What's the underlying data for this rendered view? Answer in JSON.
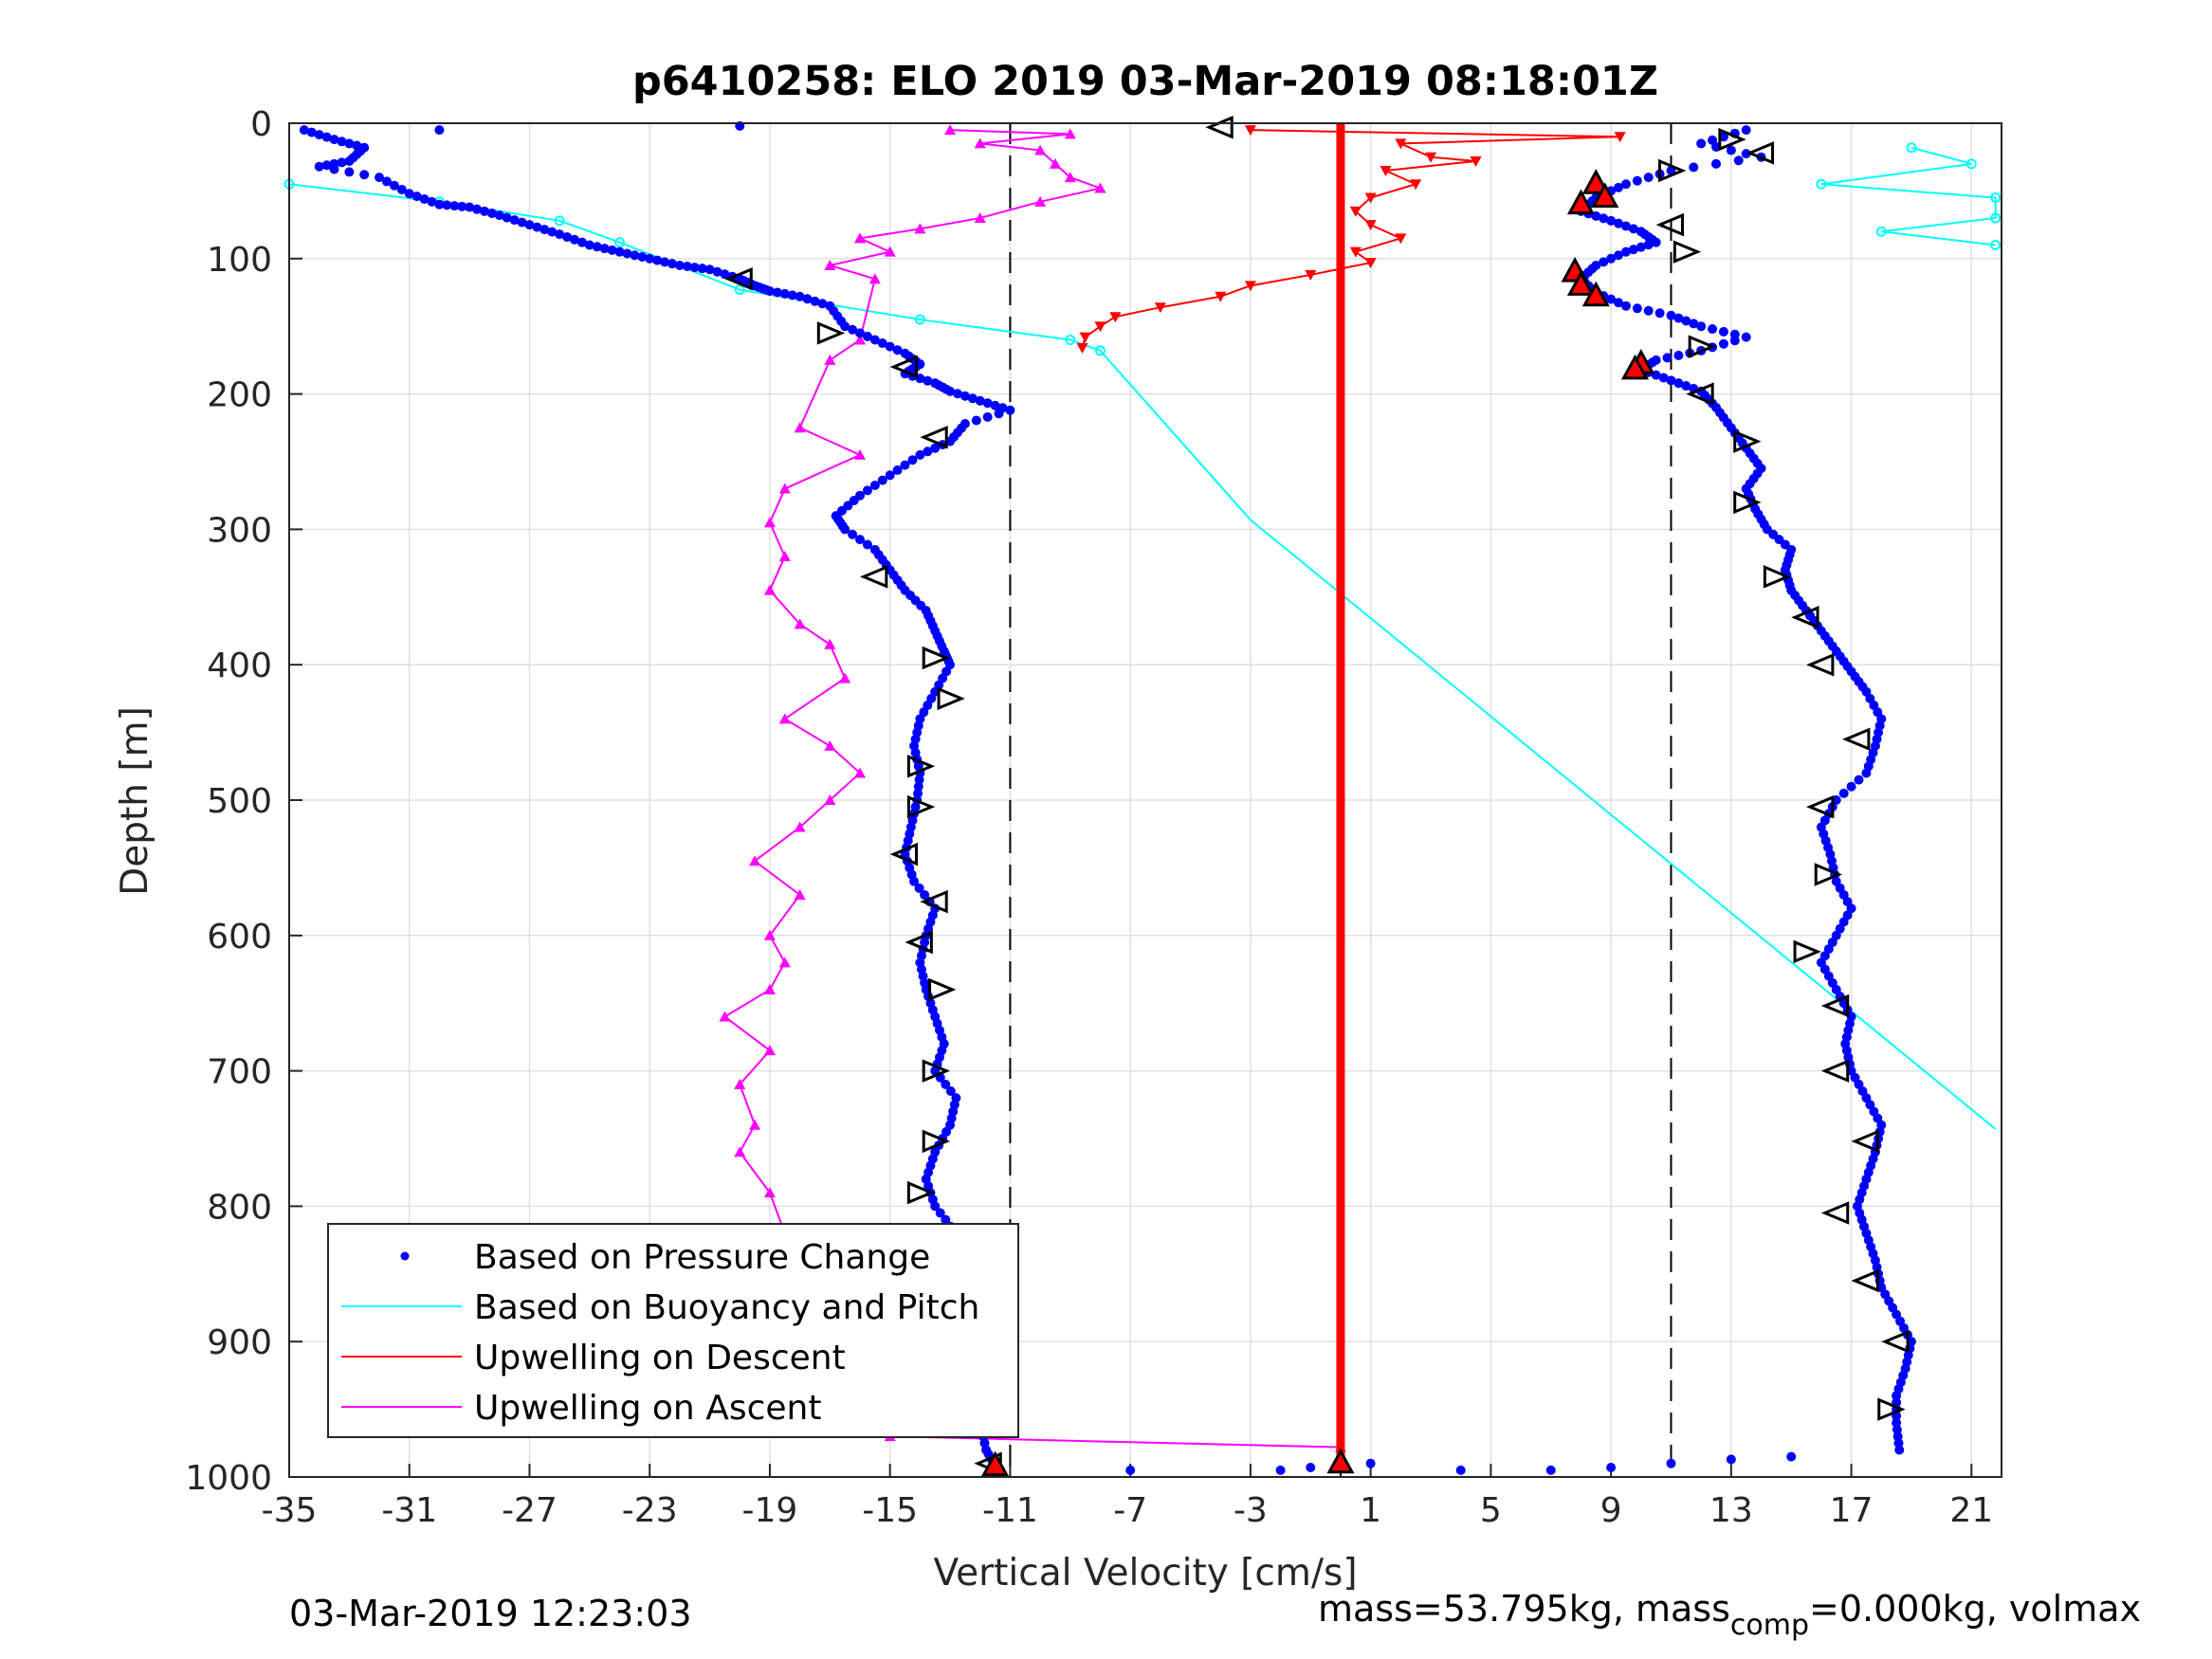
{
  "chart_data": {
    "type": "scatter",
    "title": "p6410258: ELO 2019 03-Mar-2019 08:18:01Z",
    "xlabel": "Vertical Velocity [cm/s]",
    "ylabel": "Depth [m]",
    "xlim": [
      -35,
      22
    ],
    "ylim": [
      0,
      1000
    ],
    "y_reversed": true,
    "grid": true,
    "x_ticks": [
      "-35",
      "-31",
      "-27",
      "-23",
      "-19",
      "-15",
      "-11",
      "-7",
      "-3",
      "1",
      "5",
      "9",
      "13",
      "17",
      "21"
    ],
    "y_ticks": [
      "0",
      "100",
      "200",
      "300",
      "400",
      "500",
      "600",
      "700",
      "800",
      "900",
      "1000"
    ],
    "dashed_reference_lines_x": [
      -11,
      11
    ],
    "solid_reference_line_x": 0,
    "legend_location": "bottom-left",
    "footer_left": "03-Mar-2019 12:23:03",
    "footer_right_prefix": "mass=53.795kg, mass",
    "footer_right_sub": "comp",
    "footer_right_suffix": "=0.000kg, volmax",
    "series": [
      {
        "name": "Based on Pressure Change",
        "color": "#0000ff",
        "marker": "dot",
        "descent": [
          [
            -34.5,
            5
          ],
          [
            -33.5,
            12
          ],
          [
            -32.5,
            18
          ],
          [
            -33,
            28
          ],
          [
            -34,
            32
          ],
          [
            -32,
            40
          ],
          [
            -31,
            52
          ],
          [
            -30,
            60
          ],
          [
            -29,
            62
          ],
          [
            -28,
            68
          ],
          [
            -27,
            75
          ],
          [
            -26,
            82
          ],
          [
            -25,
            90
          ],
          [
            -24,
            95
          ],
          [
            -23,
            100
          ],
          [
            -22,
            105
          ],
          [
            -21,
            108
          ],
          [
            -20,
            115
          ],
          [
            -19.5,
            120
          ],
          [
            -19,
            124
          ],
          [
            -18,
            128
          ],
          [
            -17,
            135
          ],
          [
            -16.5,
            150
          ],
          [
            -15.5,
            160
          ],
          [
            -14.5,
            170
          ],
          [
            -14,
            178
          ],
          [
            -14.5,
            185
          ],
          [
            -13.5,
            192
          ],
          [
            -13,
            198
          ],
          [
            -12,
            205
          ],
          [
            -11,
            212
          ],
          [
            -12.5,
            222
          ],
          [
            -13,
            235
          ],
          [
            -14,
            245
          ],
          [
            -15,
            260
          ],
          [
            -16,
            275
          ],
          [
            -16.8,
            290
          ],
          [
            -16.5,
            300
          ],
          [
            -15.5,
            315
          ],
          [
            -15,
            330
          ],
          [
            -14.5,
            345
          ],
          [
            -13.8,
            360
          ],
          [
            -13.5,
            375
          ],
          [
            -13.2,
            390
          ],
          [
            -13,
            400
          ],
          [
            -13.5,
            420
          ],
          [
            -14,
            440
          ],
          [
            -14.2,
            460
          ],
          [
            -14,
            480
          ],
          [
            -14.1,
            500
          ],
          [
            -14.3,
            520
          ],
          [
            -14.5,
            540
          ],
          [
            -14.2,
            560
          ],
          [
            -13.5,
            580
          ],
          [
            -13.8,
            600
          ],
          [
            -14,
            620
          ],
          [
            -13.8,
            640
          ],
          [
            -13.5,
            660
          ],
          [
            -13.2,
            680
          ],
          [
            -13.5,
            700
          ],
          [
            -12.8,
            720
          ],
          [
            -13,
            740
          ],
          [
            -13.5,
            760
          ],
          [
            -13.8,
            780
          ],
          [
            -13.5,
            800
          ],
          [
            -12.8,
            820
          ],
          [
            -12.5,
            840
          ],
          [
            -12.5,
            860
          ],
          [
            -12.8,
            880
          ],
          [
            -12.5,
            900
          ],
          [
            -12.2,
            920
          ],
          [
            -12.5,
            940
          ],
          [
            -12,
            960
          ],
          [
            -11.8,
            980
          ],
          [
            -11.5,
            992
          ]
        ],
        "ascent": [
          [
            13.5,
            5
          ],
          [
            12,
            15
          ],
          [
            14,
            25
          ],
          [
            11,
            35
          ],
          [
            9.5,
            45
          ],
          [
            8.5,
            55
          ],
          [
            8,
            65
          ],
          [
            9,
            72
          ],
          [
            10,
            80
          ],
          [
            10.5,
            88
          ],
          [
            9.5,
            95
          ],
          [
            8.5,
            105
          ],
          [
            8,
            115
          ],
          [
            8.5,
            125
          ],
          [
            9.5,
            135
          ],
          [
            11,
            142
          ],
          [
            12,
            150
          ],
          [
            13.5,
            158
          ],
          [
            12,
            168
          ],
          [
            10.5,
            175
          ],
          [
            10,
            182
          ],
          [
            11,
            190
          ],
          [
            12,
            198
          ],
          [
            12.5,
            210
          ],
          [
            13,
            225
          ],
          [
            13.5,
            240
          ],
          [
            14,
            255
          ],
          [
            13.5,
            270
          ],
          [
            13.8,
            285
          ],
          [
            14.2,
            300
          ],
          [
            15,
            315
          ],
          [
            14.8,
            330
          ],
          [
            15,
            345
          ],
          [
            15.5,
            360
          ],
          [
            16,
            375
          ],
          [
            16.5,
            390
          ],
          [
            17,
            405
          ],
          [
            17.5,
            420
          ],
          [
            18,
            440
          ],
          [
            17.8,
            460
          ],
          [
            17.5,
            480
          ],
          [
            16.5,
            500
          ],
          [
            16,
            520
          ],
          [
            16.3,
            540
          ],
          [
            16.5,
            560
          ],
          [
            17,
            580
          ],
          [
            16.5,
            600
          ],
          [
            16,
            620
          ],
          [
            16.5,
            640
          ],
          [
            17,
            660
          ],
          [
            16.8,
            680
          ],
          [
            17,
            700
          ],
          [
            17.5,
            720
          ],
          [
            18,
            740
          ],
          [
            17.8,
            760
          ],
          [
            17.5,
            780
          ],
          [
            17.2,
            800
          ],
          [
            17.5,
            820
          ],
          [
            17.8,
            840
          ],
          [
            18,
            860
          ],
          [
            18.5,
            880
          ],
          [
            19,
            900
          ],
          [
            18.8,
            920
          ],
          [
            18.5,
            940
          ],
          [
            18.5,
            960
          ],
          [
            18.6,
            980
          ]
        ],
        "surface": [
          [
            -30,
            5
          ],
          [
            -20,
            2
          ],
          [
            -7,
            995
          ],
          [
            -2,
            995
          ],
          [
            -1,
            993
          ],
          [
            1,
            990
          ],
          [
            4,
            995
          ],
          [
            7,
            995
          ],
          [
            9,
            993
          ],
          [
            11,
            990
          ],
          [
            13,
            987
          ],
          [
            15,
            985
          ]
        ]
      },
      {
        "name": "Based on Buoyancy and Pitch",
        "color": "#00ffff",
        "line": [
          [
            -35,
            45
          ],
          [
            -30,
            58
          ],
          [
            -26,
            72
          ],
          [
            -24,
            88
          ],
          [
            -20,
            123
          ],
          [
            -14,
            145
          ],
          [
            -9,
            160
          ],
          [
            -8,
            168
          ],
          [
            -3,
            293
          ],
          [
            21.8,
            743
          ]
        ],
        "upper_right": [
          [
            19,
            18
          ],
          [
            21,
            30
          ],
          [
            16,
            45
          ],
          [
            21.8,
            55
          ],
          [
            21.8,
            70
          ],
          [
            18,
            80
          ],
          [
            21.8,
            90
          ]
        ]
      },
      {
        "name": "Upwelling on Descent",
        "color": "#ff0000",
        "marker": "triangle-down",
        "points": [
          [
            -3,
            5
          ],
          [
            9.3,
            10
          ],
          [
            2,
            15
          ],
          [
            3,
            25
          ],
          [
            4.5,
            28
          ],
          [
            1.5,
            35
          ],
          [
            2.5,
            45
          ],
          [
            1,
            55
          ],
          [
            0.5,
            65
          ],
          [
            1,
            75
          ],
          [
            2,
            85
          ],
          [
            0.5,
            95
          ],
          [
            1,
            103
          ],
          [
            -1,
            112
          ],
          [
            -3,
            120
          ],
          [
            -4,
            128
          ],
          [
            -6,
            136
          ],
          [
            -7.5,
            143
          ],
          [
            -8,
            150
          ],
          [
            -8.5,
            158
          ],
          [
            -8.6,
            166
          ]
        ],
        "vertical_x": 0,
        "vertical_range": [
          0,
          992
        ]
      },
      {
        "name": "Upwelling on Ascent",
        "color": "#ff00ff",
        "marker": "triangle-up",
        "points": [
          [
            -13,
            5
          ],
          [
            -9,
            8
          ],
          [
            -12,
            15
          ],
          [
            -10,
            20
          ],
          [
            -9.5,
            30
          ],
          [
            -9,
            40
          ],
          [
            -8,
            48
          ],
          [
            -10,
            58
          ],
          [
            -12,
            70
          ],
          [
            -14,
            78
          ],
          [
            -16,
            85
          ],
          [
            -15,
            95
          ],
          [
            -17,
            105
          ],
          [
            -15.5,
            115
          ],
          [
            -16,
            160
          ],
          [
            -17,
            175
          ],
          [
            -18,
            225
          ],
          [
            -16,
            245
          ],
          [
            -18.5,
            270
          ],
          [
            -19,
            295
          ],
          [
            -18.5,
            320
          ],
          [
            -19,
            345
          ],
          [
            -18,
            370
          ],
          [
            -17,
            385
          ],
          [
            -16.5,
            410
          ],
          [
            -18.5,
            440
          ],
          [
            -17,
            460
          ],
          [
            -16,
            480
          ],
          [
            -17,
            500
          ],
          [
            -18,
            520
          ],
          [
            -19.5,
            545
          ],
          [
            -18,
            570
          ],
          [
            -19,
            600
          ],
          [
            -18.5,
            620
          ],
          [
            -19,
            640
          ],
          [
            -20.5,
            660
          ],
          [
            -19,
            685
          ],
          [
            -20,
            710
          ],
          [
            -19.5,
            740
          ],
          [
            -20,
            760
          ],
          [
            -19,
            790
          ],
          [
            -18.5,
            820
          ],
          [
            -17.5,
            850
          ],
          [
            -17,
            880
          ],
          [
            -16.5,
            910
          ],
          [
            -16,
            940
          ],
          [
            -15,
            970
          ],
          [
            0,
            978
          ]
        ]
      }
    ],
    "open_triangles": [
      [
        -4,
        3
      ],
      [
        13,
        12
      ],
      [
        14,
        22
      ],
      [
        11,
        35
      ],
      [
        11,
        75
      ],
      [
        11.5,
        95
      ],
      [
        -20,
        115
      ],
      [
        -17,
        155
      ],
      [
        -14.5,
        180
      ],
      [
        12,
        165
      ],
      [
        12,
        200
      ],
      [
        13.5,
        235
      ],
      [
        -13.5,
        232
      ],
      [
        13.5,
        280
      ],
      [
        -15.5,
        335
      ],
      [
        14.5,
        335
      ],
      [
        15.5,
        365
      ],
      [
        -13.5,
        395
      ],
      [
        16,
        400
      ],
      [
        -13,
        425
      ],
      [
        17.2,
        455
      ],
      [
        -14,
        475
      ],
      [
        16,
        505
      ],
      [
        -14,
        505
      ],
      [
        -14.5,
        540
      ],
      [
        16.2,
        555
      ],
      [
        -13.5,
        575
      ],
      [
        15.5,
        612
      ],
      [
        -14,
        605
      ],
      [
        -13.3,
        640
      ],
      [
        16.5,
        652
      ],
      [
        -13.5,
        700
      ],
      [
        16.5,
        700
      ],
      [
        -13.5,
        752
      ],
      [
        17.5,
        752
      ],
      [
        -14,
        790
      ],
      [
        16.5,
        805
      ],
      [
        -12.5,
        845
      ],
      [
        17.5,
        855
      ],
      [
        -12.5,
        895
      ],
      [
        18.5,
        900
      ],
      [
        18.3,
        950
      ],
      [
        -11.7,
        990
      ]
    ],
    "red_filled_triangles": [
      [
        8.5,
        45
      ],
      [
        8.8,
        55
      ],
      [
        8,
        60
      ],
      [
        7.8,
        110
      ],
      [
        8,
        120
      ],
      [
        8.5,
        128
      ],
      [
        10,
        178
      ],
      [
        9.8,
        182
      ],
      [
        0,
        990
      ],
      [
        -11.5,
        992
      ]
    ]
  }
}
